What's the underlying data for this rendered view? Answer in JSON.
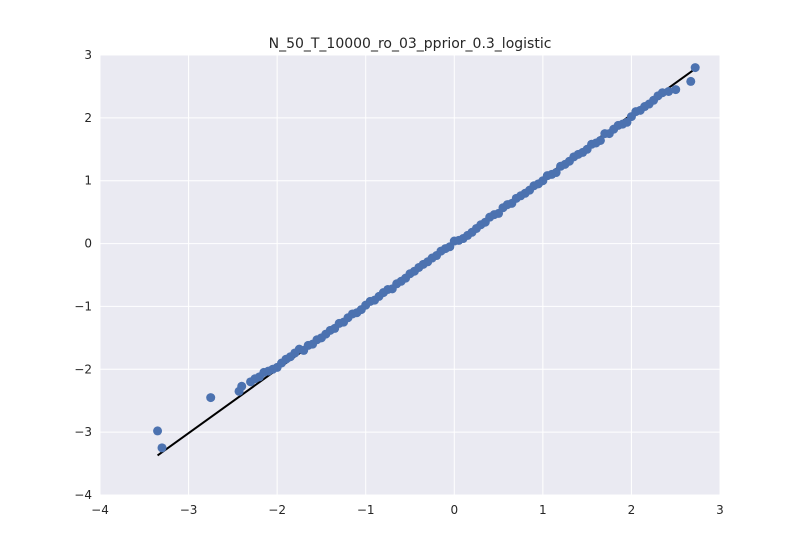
{
  "chart_data": {
    "type": "scatter",
    "title": "N_50_T_10000_ro_03_pprior_0.3_logistic",
    "xlabel": "",
    "ylabel": "",
    "xlim": [
      -4,
      3
    ],
    "ylim": [
      -4,
      3
    ],
    "xticks": [
      -4,
      -3,
      -2,
      -1,
      0,
      1,
      2,
      3
    ],
    "yticks": [
      -4,
      -3,
      -2,
      -1,
      0,
      1,
      2,
      3
    ],
    "tick_labels_x": [
      "−4",
      "−3",
      "−2",
      "−1",
      "0",
      "1",
      "2",
      "3"
    ],
    "tick_labels_y": [
      "−4",
      "−3",
      "−2",
      "−1",
      "0",
      "1",
      "2",
      "3"
    ],
    "grid": true,
    "background_color": "#EAEAF2",
    "point_color": "#4C72B0",
    "line_color": "#000000",
    "reference_line": {
      "x": [
        -3.35,
        2.72
      ],
      "y": [
        -3.37,
        2.78
      ]
    },
    "series": [
      {
        "x": [
          -3.35,
          -3.3,
          -2.75,
          -2.43,
          -2.4,
          -2.3,
          -2.25,
          -2.2,
          -2.15,
          -2.1,
          -2.05,
          -2.0,
          -1.95,
          -1.9,
          -1.85,
          -1.8,
          -1.75,
          -1.7,
          -1.65,
          -1.6,
          -1.55,
          -1.5,
          -1.45,
          -1.4,
          -1.35,
          -1.3,
          -1.25,
          -1.2,
          -1.15,
          -1.1,
          -1.05,
          -1.0,
          -0.95,
          -0.9,
          -0.85,
          -0.8,
          -0.75,
          -0.7,
          -0.65,
          -0.6,
          -0.55,
          -0.5,
          -0.45,
          -0.4,
          -0.35,
          -0.3,
          -0.25,
          -0.2,
          -0.15,
          -0.1,
          -0.05,
          0.0,
          0.05,
          0.1,
          0.15,
          0.2,
          0.25,
          0.3,
          0.35,
          0.4,
          0.45,
          0.5,
          0.55,
          0.6,
          0.65,
          0.7,
          0.75,
          0.8,
          0.85,
          0.9,
          0.95,
          1.0,
          1.05,
          1.1,
          1.15,
          1.2,
          1.25,
          1.3,
          1.35,
          1.4,
          1.45,
          1.5,
          1.55,
          1.6,
          1.65,
          1.7,
          1.75,
          1.8,
          1.85,
          1.9,
          1.95,
          2.0,
          2.05,
          2.1,
          2.15,
          2.2,
          2.25,
          2.3,
          2.35,
          2.42,
          2.5,
          2.67,
          2.72
        ],
        "y": [
          -2.98,
          -3.25,
          -2.45,
          -2.35,
          -2.27,
          -2.2,
          -2.15,
          -2.12,
          -2.05,
          -2.03,
          -2.0,
          -1.97,
          -1.9,
          -1.84,
          -1.8,
          -1.74,
          -1.68,
          -1.7,
          -1.62,
          -1.6,
          -1.53,
          -1.5,
          -1.44,
          -1.38,
          -1.35,
          -1.27,
          -1.25,
          -1.18,
          -1.12,
          -1.1,
          -1.05,
          -0.98,
          -0.92,
          -0.9,
          -0.84,
          -0.78,
          -0.73,
          -0.72,
          -0.64,
          -0.6,
          -0.55,
          -0.48,
          -0.44,
          -0.38,
          -0.33,
          -0.29,
          -0.23,
          -0.19,
          -0.12,
          -0.08,
          -0.05,
          0.04,
          0.05,
          0.08,
          0.13,
          0.18,
          0.24,
          0.3,
          0.34,
          0.42,
          0.46,
          0.48,
          0.57,
          0.62,
          0.64,
          0.72,
          0.76,
          0.8,
          0.85,
          0.92,
          0.95,
          1.0,
          1.08,
          1.1,
          1.13,
          1.23,
          1.26,
          1.31,
          1.38,
          1.42,
          1.45,
          1.5,
          1.58,
          1.6,
          1.64,
          1.75,
          1.75,
          1.82,
          1.88,
          1.9,
          1.93,
          2.02,
          2.1,
          2.12,
          2.18,
          2.22,
          2.28,
          2.35,
          2.4,
          2.42,
          2.45,
          2.58,
          2.8
        ]
      }
    ]
  }
}
